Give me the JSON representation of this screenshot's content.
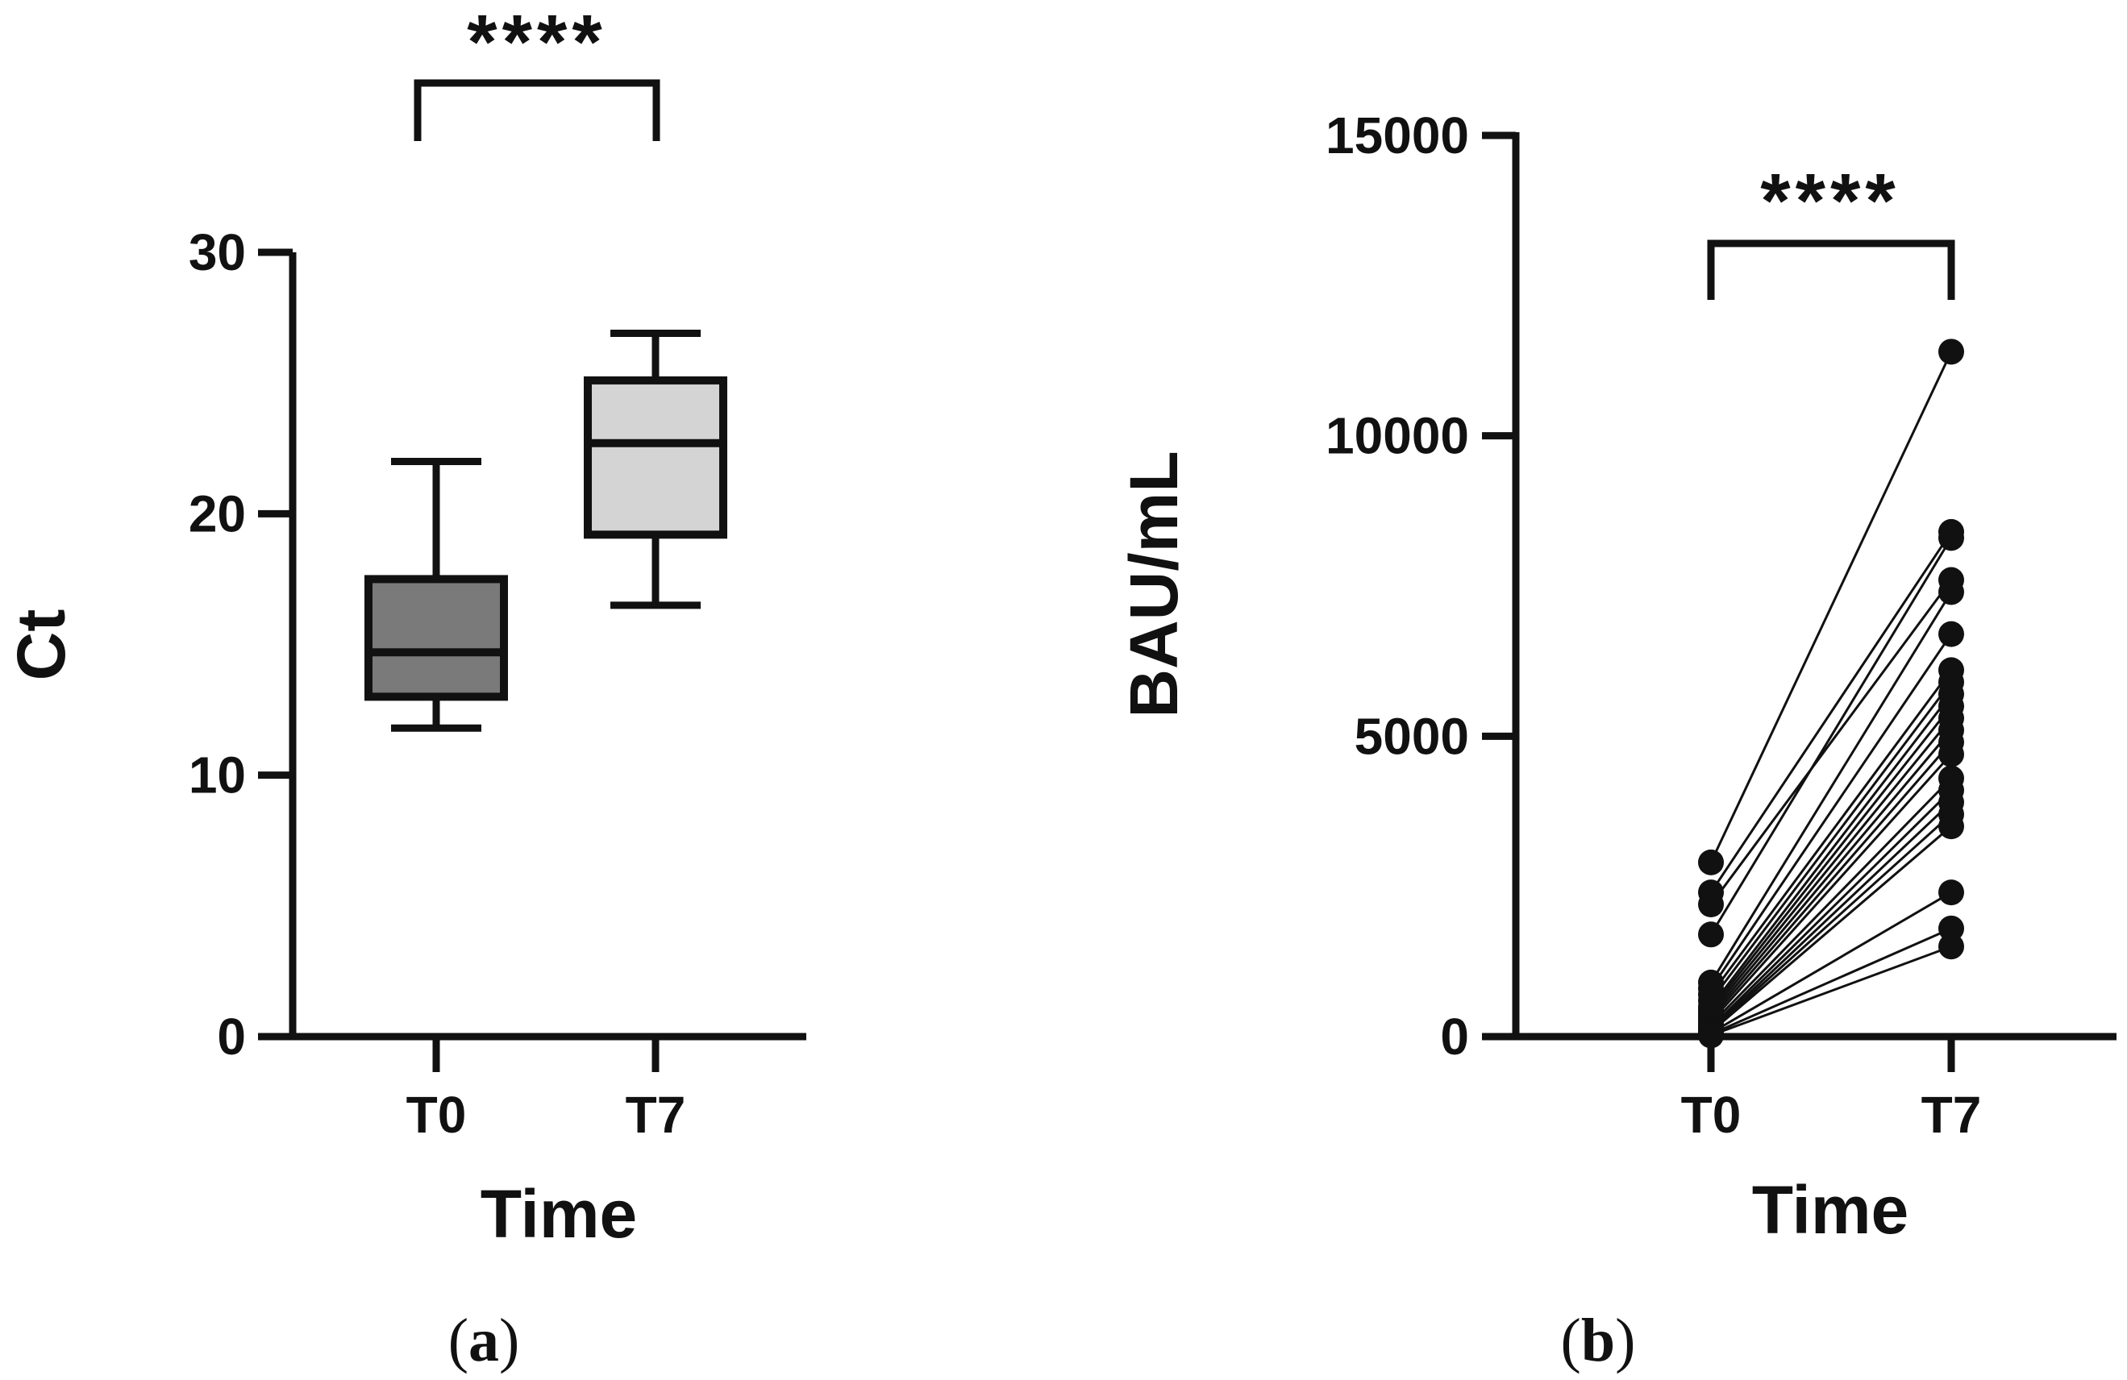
{
  "chart_data": [
    {
      "id": "a",
      "type": "box",
      "panel_label": "a",
      "xlabel": "Time",
      "ylabel": "Ct",
      "categories": [
        "T0",
        "T7"
      ],
      "ylim": [
        0,
        30
      ],
      "yticks": [
        0,
        10,
        20,
        30
      ],
      "series": [
        {
          "name": "T0",
          "min": 11.8,
          "q1": 13.0,
          "median": 14.7,
          "q3": 17.5,
          "max": 22.0,
          "fill": "#7a7a7a"
        },
        {
          "name": "T7",
          "min": 16.5,
          "q1": 19.2,
          "median": 22.7,
          "q3": 25.1,
          "max": 26.9,
          "fill": "#d4d4d4"
        }
      ],
      "significance": {
        "label": "****",
        "between": [
          "T0",
          "T7"
        ]
      }
    },
    {
      "id": "b",
      "type": "paired_scatter",
      "panel_label": "b",
      "xlabel": "Time",
      "ylabel": "BAU/mL",
      "categories": [
        "T0",
        "T7"
      ],
      "ylim": [
        0,
        15000
      ],
      "yticks": [
        0,
        5000,
        10000,
        15000
      ],
      "pairs": [
        [
          2900,
          11400
        ],
        [
          2400,
          8400
        ],
        [
          2200,
          7600
        ],
        [
          1700,
          8300
        ],
        [
          900,
          7400
        ],
        [
          800,
          6700
        ],
        [
          700,
          6100
        ],
        [
          600,
          5900
        ],
        [
          500,
          5700
        ],
        [
          450,
          5500
        ],
        [
          400,
          5300
        ],
        [
          350,
          5100
        ],
        [
          300,
          4900
        ],
        [
          250,
          4700
        ],
        [
          200,
          4300
        ],
        [
          150,
          4100
        ],
        [
          120,
          3900
        ],
        [
          100,
          3700
        ],
        [
          80,
          3500
        ],
        [
          60,
          2400
        ],
        [
          40,
          1800
        ],
        [
          20,
          1500
        ]
      ],
      "significance": {
        "label": "****",
        "between": [
          "T0",
          "T7"
        ]
      }
    }
  ]
}
